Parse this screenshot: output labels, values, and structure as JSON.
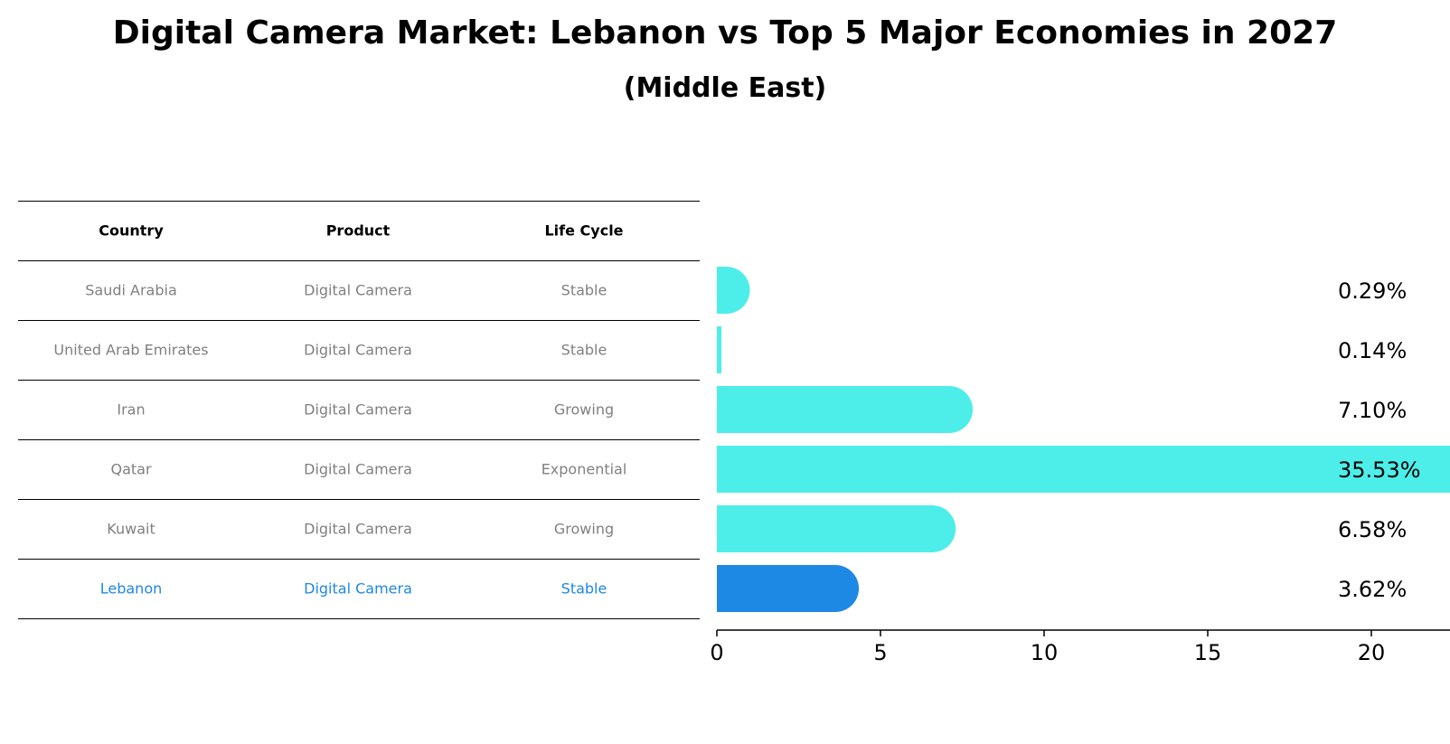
{
  "title": "Digital Camera Market: Lebanon vs Top 5 Major Economies in 2027",
  "subtitle": "(Middle East)",
  "table": {
    "headers": [
      "Country",
      "Product",
      "Life Cycle"
    ],
    "rows": [
      {
        "country": "Saudi Arabia",
        "product": "Digital Camera",
        "life_cycle": "Stable",
        "highlight": false
      },
      {
        "country": "United Arab Emirates",
        "product": "Digital Camera",
        "life_cycle": "Stable",
        "highlight": false
      },
      {
        "country": "Iran",
        "product": "Digital Camera",
        "life_cycle": "Growing",
        "highlight": false
      },
      {
        "country": "Qatar",
        "product": "Digital Camera",
        "life_cycle": "Exponential",
        "highlight": false
      },
      {
        "country": "Kuwait",
        "product": "Digital Camera",
        "life_cycle": "Growing",
        "highlight": false
      },
      {
        "country": "Lebanon",
        "product": "Digital Camera",
        "life_cycle": "Stable",
        "highlight": true
      }
    ]
  },
  "colors": {
    "bar": "#4deeea",
    "highlight": "#1e88e5",
    "muted_text": "#808080"
  },
  "chart_data": {
    "type": "bar",
    "orientation": "horizontal",
    "categories": [
      "Saudi Arabia",
      "United Arab Emirates",
      "Iran",
      "Qatar",
      "Kuwait",
      "Lebanon"
    ],
    "values": [
      0.29,
      0.14,
      7.1,
      35.53,
      6.58,
      3.62
    ],
    "value_labels": [
      "0.29%",
      "0.14%",
      "7.10%",
      "35.53%",
      "6.58%",
      "3.62%"
    ],
    "xlim": [
      0,
      37.3
    ],
    "xticks": [
      0,
      5,
      10,
      15,
      20,
      25,
      30,
      35
    ],
    "highlight_category": "Lebanon",
    "grid": false
  }
}
